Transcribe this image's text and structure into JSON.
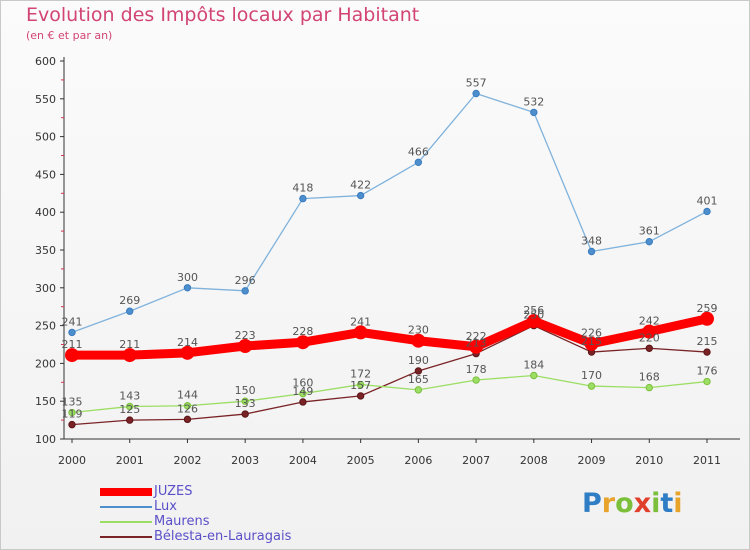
{
  "title": "Evolution des Impôts locaux par Habitant",
  "subtitle": "(en € et par an)",
  "brand": {
    "letters": [
      "P",
      "r",
      "o",
      "x",
      "i",
      "t",
      "i"
    ],
    "colors": [
      "#2f7dc4",
      "#e8a32a",
      "#7bbf3a",
      "#e0402b",
      "#7bbf3a",
      "#2f7dc4",
      "#e8a32a"
    ]
  },
  "chart_data": {
    "type": "line",
    "title": "Evolution des Impôts locaux par Habitant",
    "subtitle": "(en € et par an)",
    "xlabel": "",
    "ylabel": "",
    "x": [
      "2000",
      "2001",
      "2002",
      "2003",
      "2004",
      "2005",
      "2006",
      "2007",
      "2008",
      "2009",
      "2010",
      "2011"
    ],
    "ylim": [
      100,
      600
    ],
    "yticks": [
      100,
      150,
      200,
      250,
      300,
      350,
      400,
      450,
      500,
      550,
      600
    ],
    "grid": false,
    "legend_position": "bottom-left",
    "series": [
      {
        "name": "JUZES",
        "color": "#ff0000",
        "values": [
          211,
          211,
          214,
          223,
          228,
          241,
          230,
          222,
          256,
          226,
          242,
          259
        ]
      },
      {
        "name": "Lux",
        "color": "#4d8fcc",
        "values": [
          241,
          269,
          300,
          296,
          418,
          422,
          466,
          557,
          532,
          348,
          361,
          401
        ]
      },
      {
        "name": "Maurens",
        "color": "#9bde63",
        "values": [
          135,
          143,
          144,
          150,
          160,
          172,
          165,
          178,
          184,
          170,
          168,
          176
        ]
      },
      {
        "name": "Bélesta-en-Lauragais",
        "color": "#7a2326",
        "values": [
          119,
          125,
          126,
          133,
          149,
          157,
          190,
          213,
          250,
          215,
          220,
          215
        ]
      }
    ]
  }
}
